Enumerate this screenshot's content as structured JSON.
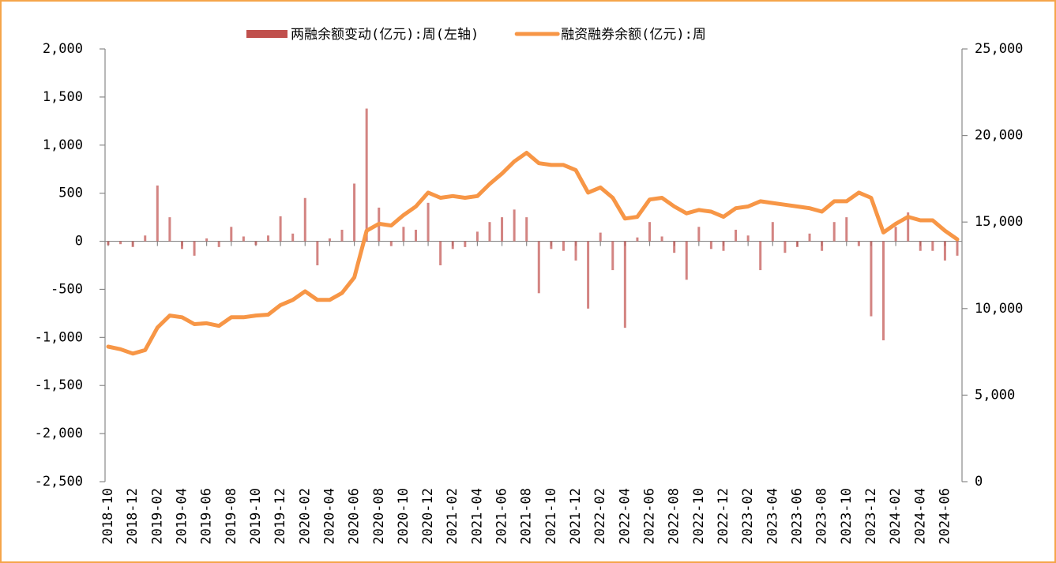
{
  "chart_data": {
    "type": "bar-line",
    "categories": [
      "2018-10",
      null,
      "2018-12",
      null,
      "2019-02",
      null,
      "2019-04",
      null,
      "2019-06",
      null,
      "2019-08",
      null,
      "2019-10",
      null,
      "2019-12",
      null,
      "2020-02",
      null,
      "2020-04",
      null,
      "2020-06",
      null,
      "2020-08",
      null,
      "2020-10",
      null,
      "2020-12",
      null,
      "2021-02",
      null,
      "2021-04",
      null,
      "2021-06",
      null,
      "2021-08",
      null,
      "2021-10",
      null,
      "2021-12",
      null,
      "2022-02",
      null,
      "2022-04",
      null,
      "2022-06",
      null,
      "2022-08",
      null,
      "2022-10",
      null,
      "2022-12",
      null,
      "2023-02",
      null,
      "2023-04",
      null,
      "2023-06",
      null,
      "2023-08",
      null,
      "2023-10",
      null,
      "2023-12",
      null,
      "2024-02",
      null,
      "2024-04",
      null,
      "2024-06",
      null
    ],
    "series": [
      {
        "name": "两融余额变动(亿元):周(左轴)",
        "type": "bar",
        "color": "#c0504d",
        "axis": "y",
        "values": [
          -40,
          -30,
          -60,
          60,
          580,
          250,
          -80,
          -150,
          30,
          -60,
          150,
          50,
          -40,
          60,
          260,
          80,
          450,
          -250,
          30,
          120,
          600,
          1380,
          350,
          -50,
          150,
          120,
          400,
          -250,
          -80,
          -60,
          100,
          200,
          250,
          330,
          250,
          -540,
          -80,
          -100,
          -200,
          -700,
          90,
          -300,
          -900,
          40,
          200,
          50,
          -120,
          -400,
          150,
          -80,
          -100,
          120,
          60,
          -300,
          200,
          -120,
          -60,
          80,
          -100,
          200,
          250,
          -50,
          -780,
          -1030,
          150,
          300,
          -100,
          -100,
          -200,
          -150
        ]
      },
      {
        "name": "融资融券余额(亿元):周",
        "type": "line",
        "color": "#f79646",
        "axis": "y2",
        "values": [
          7800,
          7650,
          7400,
          7600,
          8900,
          9600,
          9500,
          9100,
          9150,
          9000,
          9500,
          9500,
          9600,
          9650,
          10200,
          10500,
          11000,
          10500,
          10500,
          10900,
          11800,
          14500,
          14900,
          14800,
          15400,
          15900,
          16700,
          16400,
          16500,
          16400,
          16500,
          17200,
          17800,
          18500,
          19000,
          18400,
          18300,
          18300,
          18000,
          16700,
          17000,
          16400,
          15200,
          15300,
          16300,
          16400,
          15900,
          15500,
          15700,
          15600,
          15300,
          15800,
          15900,
          16200,
          16100,
          16000,
          15900,
          15800,
          15600,
          16200,
          16200,
          16700,
          16400,
          14400,
          14900,
          15300,
          15100,
          15100,
          14500,
          14000
        ]
      }
    ],
    "ylim": [
      -2500,
      2000
    ],
    "yticks": [
      {
        "value": -2500,
        "label": "-2,500"
      },
      {
        "value": -2000,
        "label": "-2,000"
      },
      {
        "value": -1500,
        "label": "-1,500"
      },
      {
        "value": -1000,
        "label": "-1,000"
      },
      -500,
      0,
      500,
      {
        "value": 1000,
        "label": "1,000"
      },
      {
        "value": 1500,
        "label": "1,500"
      },
      {
        "value": 2000,
        "label": "2,000"
      }
    ],
    "y2lim": [
      0,
      25000
    ],
    "y2ticks": [
      0,
      {
        "value": 5000,
        "label": "5,000"
      },
      {
        "value": 10000,
        "label": "10,000"
      },
      {
        "value": 15000,
        "label": "15,000"
      },
      {
        "value": 20000,
        "label": "20,000"
      },
      {
        "value": 25000,
        "label": "25,000"
      }
    ],
    "legend": "top"
  }
}
